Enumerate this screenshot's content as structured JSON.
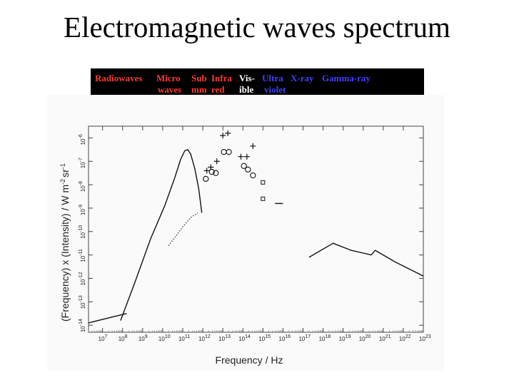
{
  "slide": {
    "title": "Electromagnetic waves spectrum"
  },
  "bands": [
    {
      "line1": "Radiowaves",
      "line2": "",
      "color": "#ff3b2f"
    },
    {
      "line1": "Micro",
      "line2": "waves",
      "color": "#ff3b2f"
    },
    {
      "line1": "Sub",
      "line2": "mm",
      "color": "#ff3b2f"
    },
    {
      "line1": "Infra",
      "line2": "red",
      "color": "#ff3b2f"
    },
    {
      "line1": "Vis-",
      "line2": "ible",
      "color": "#ffffff"
    },
    {
      "line1": "Ultra",
      "line2": "violet",
      "color": "#4040ff"
    },
    {
      "line1": "X-ray",
      "line2": "",
      "color": "#4040ff"
    },
    {
      "line1": "Gamma-ray",
      "line2": "",
      "color": "#4040ff"
    }
  ],
  "chart_data": {
    "type": "line",
    "xlabel": "Frequency / Hz",
    "ylabel": "(Frequency) x (Intensity) / W m",
    "ylabel_suffix": "sr",
    "x_scale": "log",
    "y_scale": "log",
    "x_tick_labels": [
      {
        "mantissa": "10",
        "exp": "7"
      },
      {
        "mantissa": "10",
        "exp": "8"
      },
      {
        "mantissa": "10",
        "exp": "9"
      },
      {
        "mantissa": "10",
        "exp": "10"
      },
      {
        "mantissa": "10",
        "exp": "11"
      },
      {
        "mantissa": "10",
        "exp": "12"
      },
      {
        "mantissa": "10",
        "exp": "13"
      },
      {
        "mantissa": "10",
        "exp": "14"
      },
      {
        "mantissa": "10",
        "exp": "15"
      },
      {
        "mantissa": "10",
        "exp": "16"
      },
      {
        "mantissa": "10",
        "exp": "17"
      },
      {
        "mantissa": "10",
        "exp": "18"
      },
      {
        "mantissa": "10",
        "exp": "19"
      },
      {
        "mantissa": "10",
        "exp": "20"
      },
      {
        "mantissa": "10",
        "exp": "21"
      },
      {
        "mantissa": "10",
        "exp": "22"
      },
      {
        "mantissa": "10",
        "exp": "23"
      }
    ],
    "y_tick_labels": [
      {
        "mantissa": "10",
        "exp": "-14"
      },
      {
        "mantissa": "10",
        "exp": "-13"
      },
      {
        "mantissa": "10",
        "exp": "-12"
      },
      {
        "mantissa": "10",
        "exp": "-11"
      },
      {
        "mantissa": "10",
        "exp": "-10"
      },
      {
        "mantissa": "10",
        "exp": "-9"
      },
      {
        "mantissa": "10",
        "exp": "-8"
      },
      {
        "mantissa": "10",
        "exp": "-7"
      },
      {
        "mantissa": "10",
        "exp": "-6"
      }
    ],
    "xlim_log10": [
      6.3,
      23
    ],
    "ylim_log10": [
      -14.3,
      -5.5
    ],
    "series": [
      {
        "style": "solid",
        "points_log10": [
          [
            6.3,
            -13.9
          ],
          [
            8.2,
            -13.5
          ]
        ]
      },
      {
        "style": "solid",
        "points_log10": [
          [
            7.9,
            -13.8
          ],
          [
            8.6,
            -12.2
          ],
          [
            9.4,
            -10.3
          ],
          [
            10.1,
            -8.9
          ],
          [
            10.6,
            -7.7
          ],
          [
            10.9,
            -6.9
          ],
          [
            11.1,
            -6.55
          ],
          [
            11.25,
            -6.5
          ],
          [
            11.4,
            -6.7
          ],
          [
            11.6,
            -7.3
          ],
          [
            11.8,
            -8.2
          ],
          [
            11.95,
            -9.2
          ]
        ]
      },
      {
        "style": "dotted",
        "points_log10": [
          [
            10.3,
            -10.6
          ],
          [
            11.0,
            -9.8
          ],
          [
            11.4,
            -9.4
          ],
          [
            11.75,
            -9.2
          ]
        ]
      },
      {
        "style": "solid",
        "points_log10": [
          [
            15.6,
            -8.8
          ],
          [
            16.0,
            -8.8
          ]
        ]
      },
      {
        "style": "solid",
        "points_log10": [
          [
            17.3,
            -11.1
          ],
          [
            18.5,
            -10.5
          ],
          [
            19.4,
            -10.8
          ],
          [
            20.4,
            -11.0
          ],
          [
            20.6,
            -10.8
          ],
          [
            21.6,
            -11.3
          ],
          [
            23,
            -11.9
          ]
        ]
      }
    ],
    "markers": [
      {
        "shape": "plus",
        "x_log10": 12.2,
        "y_log10": -7.4
      },
      {
        "shape": "plus",
        "x_log10": 12.4,
        "y_log10": -7.25
      },
      {
        "shape": "plus",
        "x_log10": 12.7,
        "y_log10": -7.0
      },
      {
        "shape": "plus",
        "x_log10": 13.0,
        "y_log10": -5.9
      },
      {
        "shape": "plus",
        "x_log10": 13.25,
        "y_log10": -5.8
      },
      {
        "shape": "plus",
        "x_log10": 13.9,
        "y_log10": -6.8
      },
      {
        "shape": "plus",
        "x_log10": 14.2,
        "y_log10": -6.8
      },
      {
        "shape": "plus",
        "x_log10": 14.5,
        "y_log10": -6.35
      },
      {
        "shape": "circle",
        "x_log10": 12.15,
        "y_log10": -7.75
      },
      {
        "shape": "circle",
        "x_log10": 12.45,
        "y_log10": -7.45
      },
      {
        "shape": "circle",
        "x_log10": 12.65,
        "y_log10": -7.5
      },
      {
        "shape": "circle",
        "x_log10": 13.05,
        "y_log10": -6.6
      },
      {
        "shape": "circle",
        "x_log10": 13.3,
        "y_log10": -6.6
      },
      {
        "shape": "circle",
        "x_log10": 14.05,
        "y_log10": -7.2
      },
      {
        "shape": "circle",
        "x_log10": 14.25,
        "y_log10": -7.35
      },
      {
        "shape": "circle",
        "x_log10": 14.5,
        "y_log10": -7.6
      },
      {
        "shape": "square",
        "x_log10": 15.0,
        "y_log10": -7.9
      },
      {
        "shape": "square",
        "x_log10": 15.0,
        "y_log10": -8.6
      }
    ]
  }
}
